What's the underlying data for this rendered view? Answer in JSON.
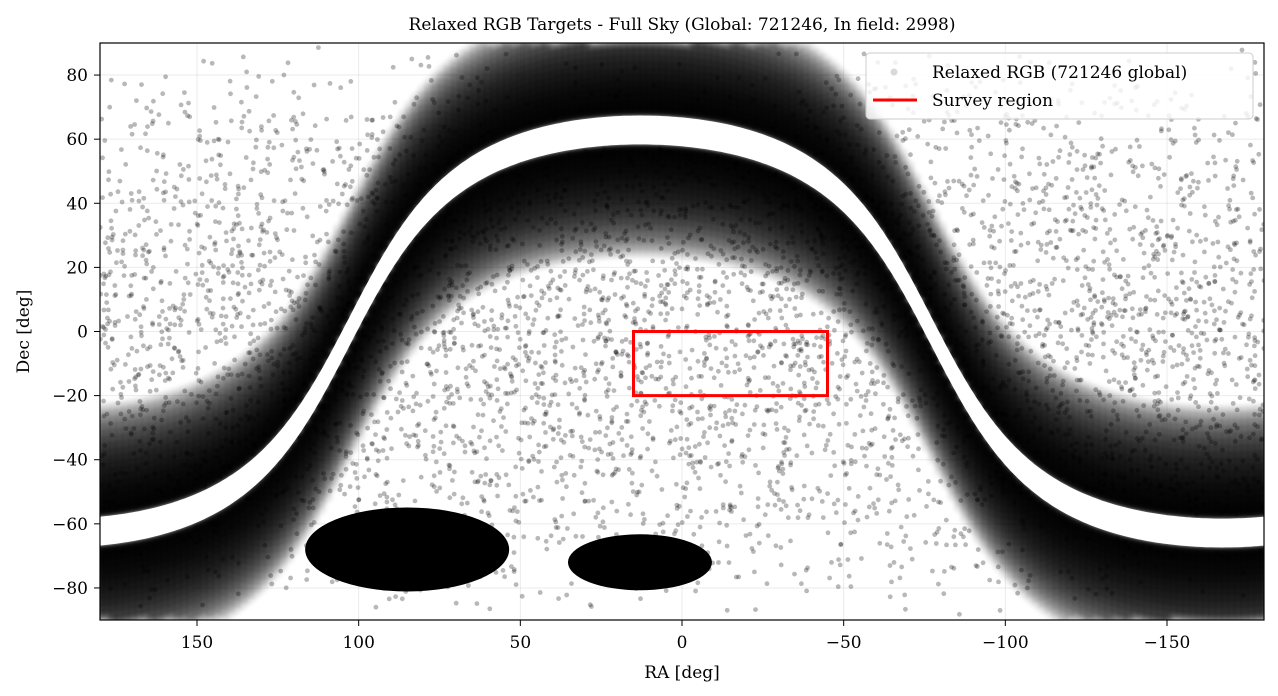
{
  "chart_data": {
    "type": "scatter",
    "title": "Relaxed RGB Targets - Full Sky (Global: 721246, In field: 2998)",
    "xlabel": "RA [deg]",
    "ylabel": "Dec [deg]",
    "xlim": [
      180,
      -180
    ],
    "ylim": [
      -90,
      90
    ],
    "x_inverted": true,
    "x_ticks": [
      150,
      100,
      50,
      0,
      -50,
      -100,
      -150
    ],
    "x_tick_labels": [
      "150",
      "100",
      "50",
      "0",
      "−50",
      "−100",
      "−150"
    ],
    "y_ticks": [
      80,
      60,
      40,
      20,
      0,
      -20,
      -40,
      -60,
      -80
    ],
    "y_tick_labels": [
      "80",
      "60",
      "40",
      "20",
      "0",
      "−20",
      "−40",
      "−60",
      "−80"
    ],
    "grid": true,
    "legend_position": "top-right",
    "series": [
      {
        "name": "Relaxed RGB (721246 global)",
        "kind": "scatter",
        "color": "#000000",
        "alpha": 0.12,
        "count": 721246,
        "dense_regions": [
          {
            "ra": 85,
            "dec": -73,
            "note": "LMC"
          },
          {
            "ra": 13,
            "dec": -73,
            "note": "SMC"
          }
        ],
        "gap_band": "Galactic plane (avoidance zone, |b| < ~4 deg)"
      },
      {
        "name": "Survey region",
        "kind": "rectangle",
        "color": "#ff0000",
        "ra_range": [
          15,
          -45
        ],
        "dec_range": [
          -20,
          0
        ]
      }
    ],
    "in_field_count": 2998
  }
}
